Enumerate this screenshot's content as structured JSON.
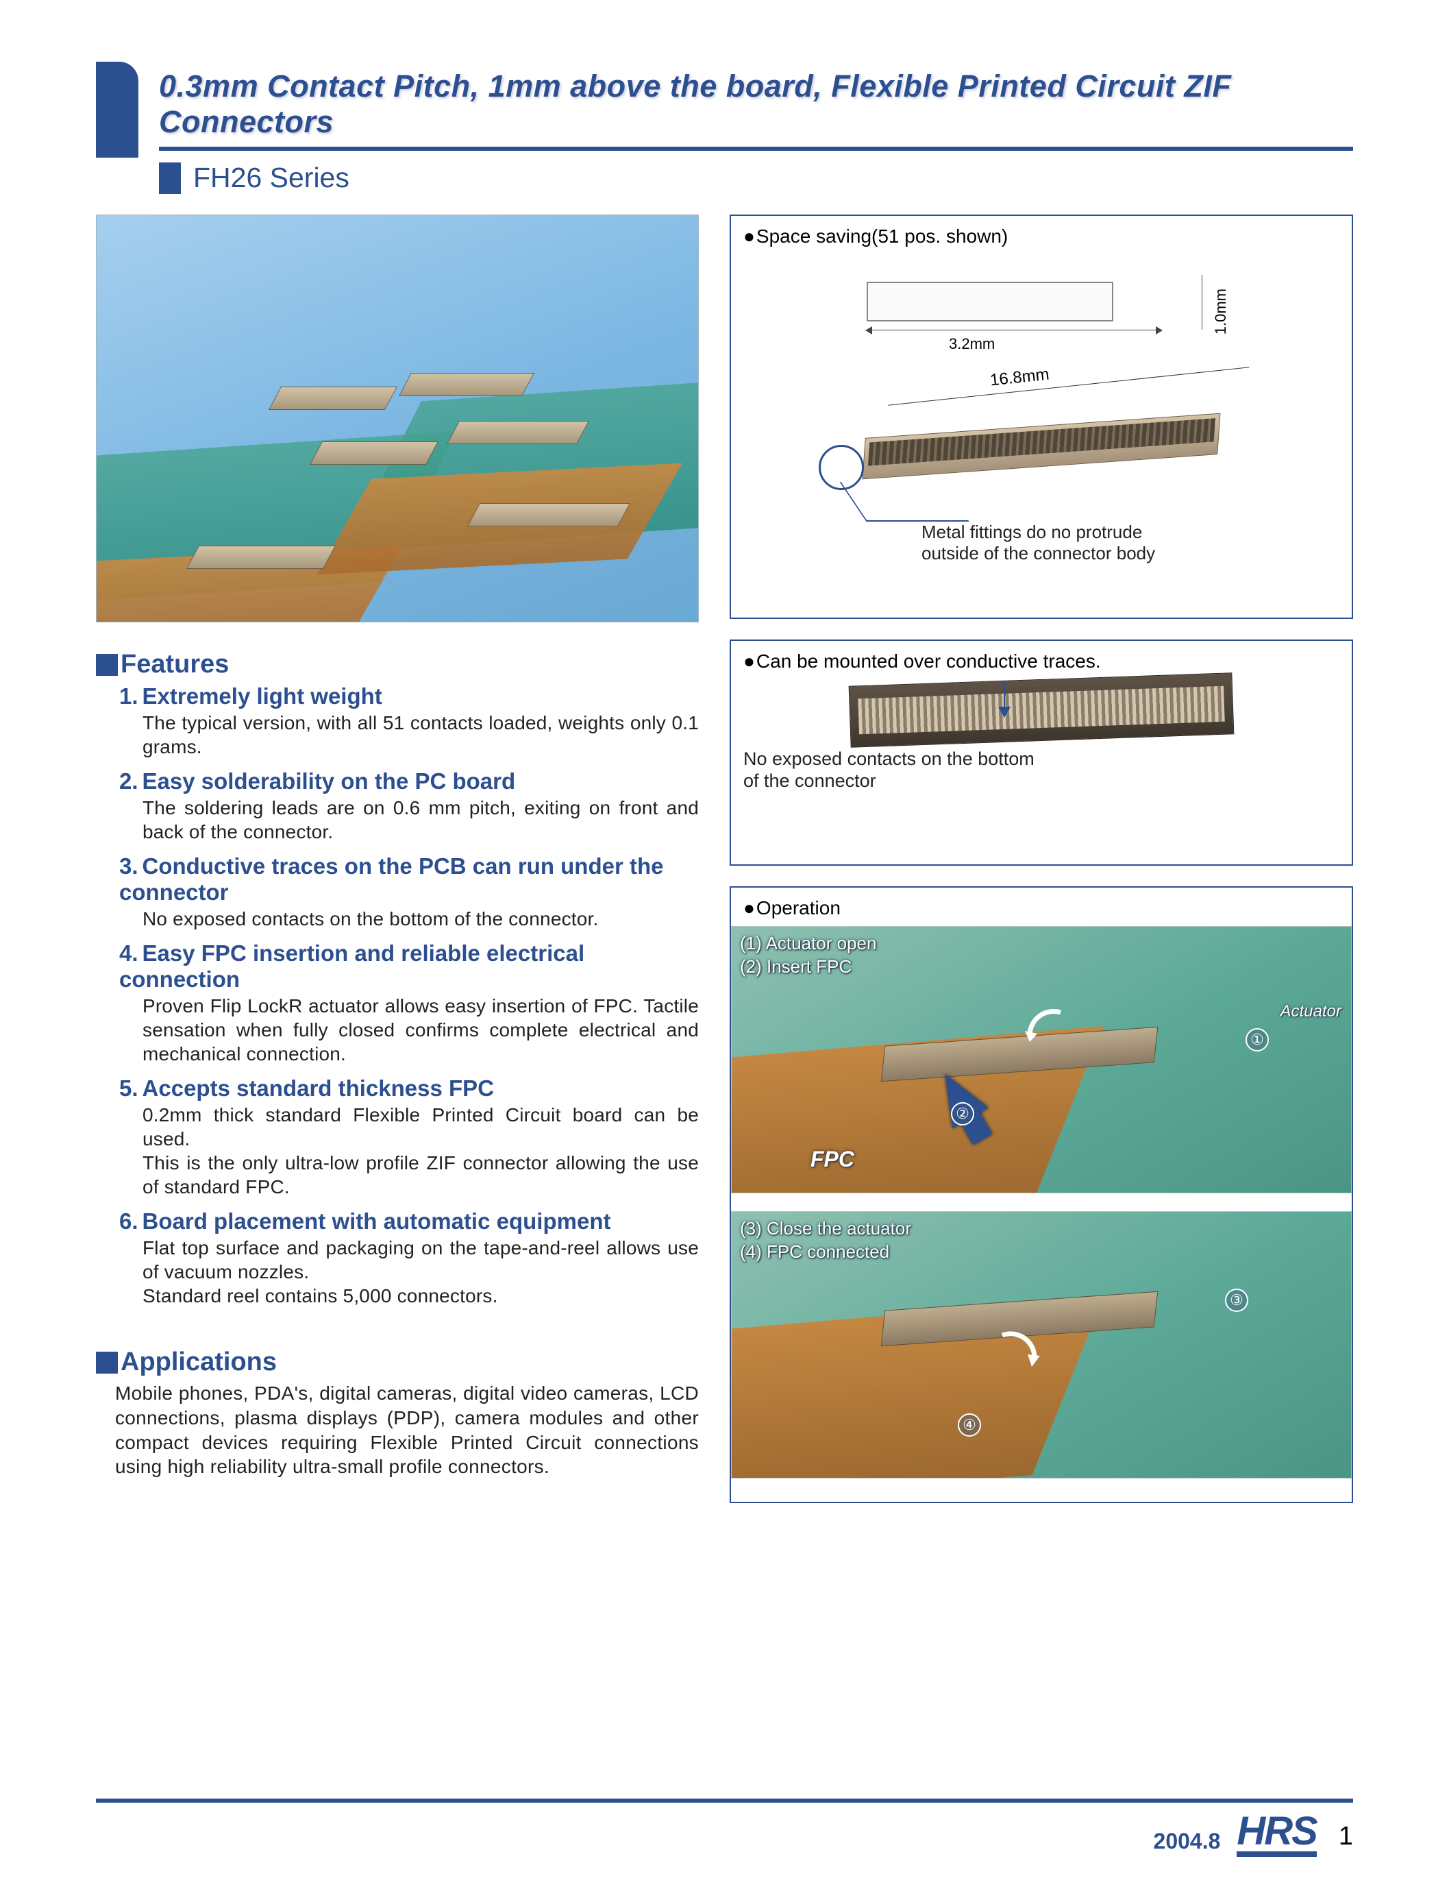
{
  "colors": {
    "accent": "#2c4f8f"
  },
  "header": {
    "title": "0.3mm Contact Pitch, 1mm above the board, Flexible Printed Circuit ZIF Connectors",
    "series": "FH26 Series"
  },
  "features": {
    "heading": "Features",
    "items": [
      {
        "num": "1.",
        "title": "Extremely light weight",
        "body": "The typical version, with all 51 contacts loaded, weights only 0.1 grams."
      },
      {
        "num": "2.",
        "title": "Easy solderability on the PC board",
        "body": "The soldering leads are on 0.6 mm pitch, exiting on front and back of the connector."
      },
      {
        "num": "3.",
        "title": "Conductive traces on the PCB can run under the connector",
        "body": "No exposed contacts on the bottom of the connector."
      },
      {
        "num": "4.",
        "title": "Easy FPC insertion and reliable electrical connection",
        "body": "Proven Flip LockR actuator allows easy insertion of FPC. Tactile sensation when fully closed confirms complete electrical and mechanical connection."
      },
      {
        "num": "5.",
        "title": "Accepts standard thickness FPC",
        "body": "0.2mm thick standard Flexible Printed Circuit board can be used.\nThis is the only ultra-low profile ZIF connector allowing the use of standard FPC."
      },
      {
        "num": "6.",
        "title": "Board placement with automatic equipment",
        "body": "Flat top surface and packaging on the tape-and-reel allows use of vacuum nozzles.\nStandard reel contains 5,000 connectors."
      }
    ]
  },
  "applications": {
    "heading": "Applications",
    "body": "Mobile phones, PDA's, digital cameras, digital video cameras, LCD connections, plasma displays (PDP), camera modules and other compact devices requiring Flexible Printed Circuit connections using high reliability ultra-small profile connectors."
  },
  "panel1": {
    "label": "Space saving(51 pos. shown)",
    "dim_w": "3.2mm",
    "dim_h": "1.0mm",
    "length": "16.8mm",
    "callout": "Metal fittings do no protrude\noutside of the connector body"
  },
  "panel2": {
    "label": "Can be mounted over conductive traces.",
    "caption": "No exposed contacts on the bottom\nof the connector"
  },
  "panel3": {
    "label": "Operation",
    "step_a1": "(1) Actuator open",
    "step_a2": "(2) Insert FPC",
    "actuator": "Actuator",
    "fpc": "FPC",
    "step_b1": "(3) Close the actuator",
    "step_b2": "(4) FPC connected",
    "n1": "①",
    "n2": "②",
    "n3": "③",
    "n4": "④"
  },
  "footer": {
    "date": "2004.8",
    "logo": "HRS",
    "page": "1"
  }
}
